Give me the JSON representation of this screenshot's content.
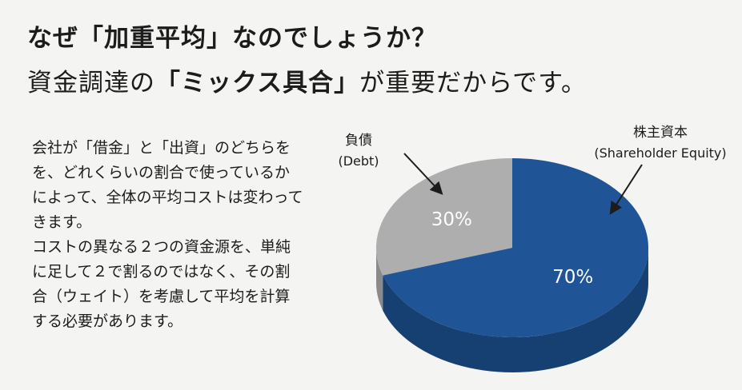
{
  "header": {
    "title_line1": "なぜ「加重平均」なのでしょうか？",
    "title_line2_prefix": "資金調達の",
    "title_line2_strong": "「ミックス具合」",
    "title_line2_suffix": "が重要だからです。"
  },
  "body": {
    "paragraph1": "会社が「借金」と「出資」のどちらをを、どれくらいの割合で使っているかによって、全体の平均コストは変わってきます。",
    "paragraph2": "コストの異なる２つの資金源を、単純に足して２で割るのではなく、その割合（ウェイト）を考慮して平均を計算する必要があります。"
  },
  "chart_data": {
    "type": "pie",
    "slices": [
      {
        "label": "負債",
        "sublabel": "(Debt)",
        "value": 30,
        "display": "30%",
        "color": "#aeaeae",
        "side_color": "#8a8a8a"
      },
      {
        "label": "株主資本",
        "sublabel": "(Shareholder Equity)",
        "value": 70,
        "display": "70%",
        "color": "#1f5496",
        "side_color": "#163f72"
      }
    ]
  }
}
